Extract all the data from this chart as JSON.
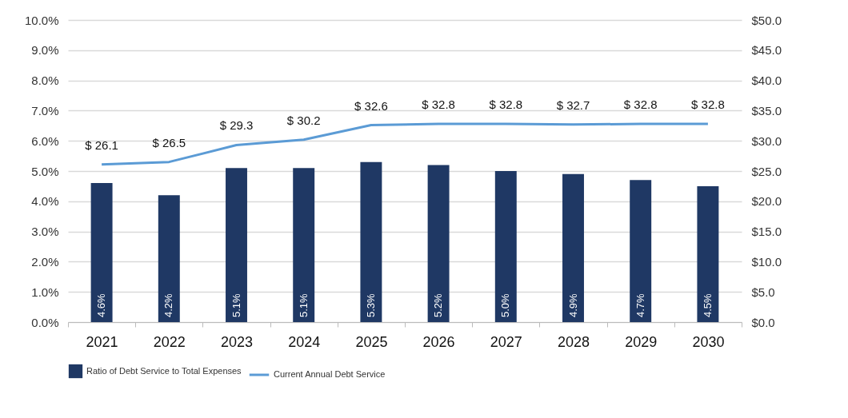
{
  "chart_data": {
    "type": "bar",
    "categories": [
      "2021",
      "2022",
      "2023",
      "2024",
      "2025",
      "2026",
      "2027",
      "2028",
      "2029",
      "2030"
    ],
    "series": [
      {
        "name": "Ratio of Debt Service to Total Expenses",
        "color": "#1f3864",
        "values": [
          4.6,
          4.2,
          5.1,
          5.1,
          5.3,
          5.2,
          5.0,
          4.9,
          4.7,
          4.5
        ],
        "value_labels": [
          "4.6%",
          "4.2%",
          "5.1%",
          "5.1%",
          "5.3%",
          "5.2%",
          "5.0%",
          "4.9%",
          "4.7%",
          "4.5%"
        ]
      },
      {
        "name": "Current Annual Debt Service",
        "type": "line",
        "axis": "y2",
        "color": "#5b9bd5",
        "values": [
          26.1,
          26.5,
          29.3,
          30.2,
          32.6,
          32.8,
          32.8,
          32.7,
          32.8,
          32.8
        ],
        "value_labels": [
          "$ 26.1",
          "$ 26.5",
          "$ 29.3",
          "$ 30.2",
          "$ 32.6",
          "$ 32.8",
          "$ 32.8",
          "$ 32.7",
          "$ 32.8",
          "$ 32.8"
        ]
      }
    ],
    "ylim": [
      0,
      10
    ],
    "yticks": [
      {
        "value": 0,
        "label": "0.0%"
      },
      {
        "value": 1,
        "label": "1.0%"
      },
      {
        "value": 2,
        "label": "2.0%"
      },
      {
        "value": 3,
        "label": "3.0%"
      },
      {
        "value": 4,
        "label": "4.0%"
      },
      {
        "value": 5,
        "label": "5.0%"
      },
      {
        "value": 6,
        "label": "6.0%"
      },
      {
        "value": 7,
        "label": "7.0%"
      },
      {
        "value": 8,
        "label": "8.0%"
      },
      {
        "value": 9,
        "label": "9.0%"
      },
      {
        "value": 10,
        "label": "10.0%"
      }
    ],
    "y2lim": [
      0,
      50
    ],
    "y2ticks": [
      {
        "value": 0,
        "label": "$0.0"
      },
      {
        "value": 5,
        "label": "$5.0"
      },
      {
        "value": 10,
        "label": "$10.0"
      },
      {
        "value": 15,
        "label": "$15.0"
      },
      {
        "value": 20,
        "label": "$20.0"
      },
      {
        "value": 25,
        "label": "$25.0"
      },
      {
        "value": 30,
        "label": "$30.0"
      },
      {
        "value": 35,
        "label": "$35.0"
      },
      {
        "value": 40,
        "label": "$40.0"
      },
      {
        "value": 45,
        "label": "$45.0"
      },
      {
        "value": 50,
        "label": "$50.0"
      }
    ],
    "grid": "y",
    "legend": "bottom"
  }
}
